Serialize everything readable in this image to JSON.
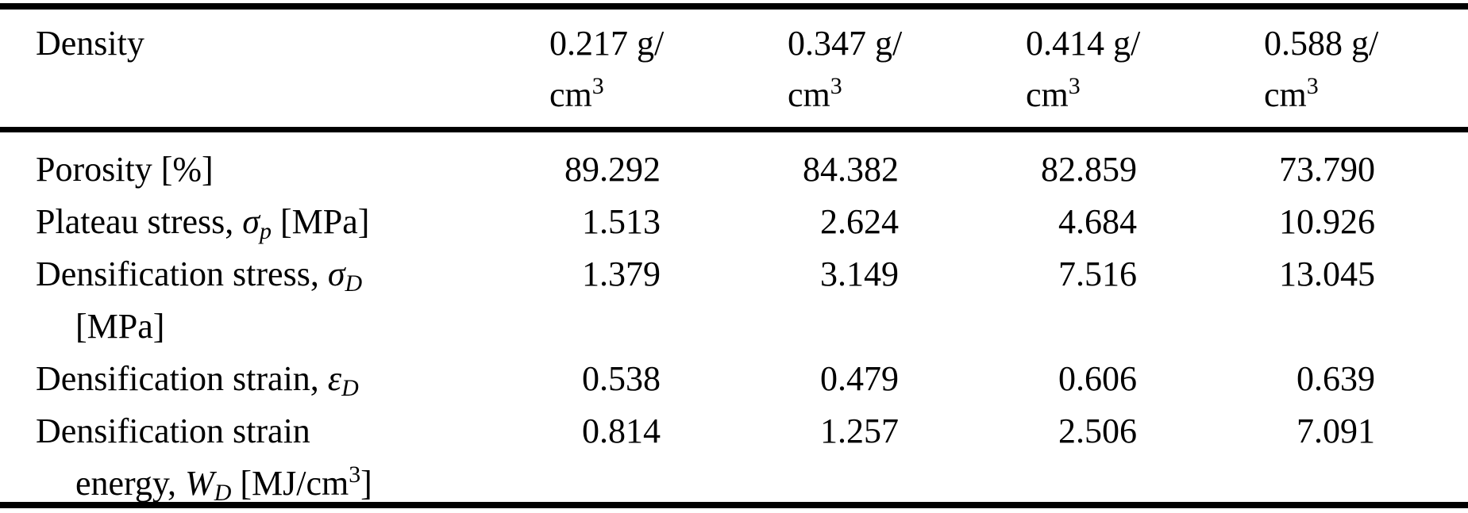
{
  "colors": {
    "background": "#ffffff",
    "text": "#000000",
    "rule": "#000000"
  },
  "table": {
    "header": {
      "label": "Density",
      "columns": [
        {
          "line1": "0.217 g/",
          "unit_base": "cm",
          "unit_sup": "3"
        },
        {
          "line1": "0.347 g/",
          "unit_base": "cm",
          "unit_sup": "3"
        },
        {
          "line1": "0.414 g/",
          "unit_base": "cm",
          "unit_sup": "3"
        },
        {
          "line1": "0.588 g/",
          "unit_base": "cm",
          "unit_sup": "3"
        }
      ]
    },
    "rows": [
      {
        "line1": {
          "pre": "Porosity [%]"
        },
        "values": [
          "89.292",
          "84.382",
          "82.859",
          "73.790"
        ]
      },
      {
        "line1": {
          "pre": "Plateau stress, ",
          "sym": "σ",
          "sym_sub": "p",
          "post": " [MPa]"
        },
        "values": [
          "1.513",
          "2.624",
          "4.684",
          "10.926"
        ]
      },
      {
        "line1": {
          "pre": "Densification stress, ",
          "sym": "σ",
          "sym_sub": "D"
        },
        "line2": {
          "pre": "[MPa]"
        },
        "values": [
          "1.379",
          "3.149",
          "7.516",
          "13.045"
        ]
      },
      {
        "line1": {
          "pre": "Densification strain, ",
          "sym": "ε",
          "sym_sub": "D"
        },
        "values": [
          "0.538",
          "0.479",
          "0.606",
          "0.639"
        ]
      },
      {
        "line1": {
          "pre": "Densification strain"
        },
        "line2": {
          "pre": "energy, ",
          "sym": "W",
          "sym_sub": "D",
          "post": " [MJ/cm",
          "sup": "3",
          "post2": "]"
        },
        "values": [
          "0.814",
          "1.257",
          "2.506",
          "7.091"
        ]
      }
    ]
  },
  "chart_data": {
    "type": "table",
    "title": "",
    "row_header": "Density",
    "categories": [
      "0.217 g/cm3",
      "0.347 g/cm3",
      "0.414 g/cm3",
      "0.588 g/cm3"
    ],
    "series": [
      {
        "name": "Porosity [%]",
        "values": [
          89.292,
          84.382,
          82.859,
          73.79
        ]
      },
      {
        "name": "Plateau stress, σp [MPa]",
        "values": [
          1.513,
          2.624,
          4.684,
          10.926
        ]
      },
      {
        "name": "Densification stress, σD [MPa]",
        "values": [
          1.379,
          3.149,
          7.516,
          13.045
        ]
      },
      {
        "name": "Densification strain, εD",
        "values": [
          0.538,
          0.479,
          0.606,
          0.639
        ]
      },
      {
        "name": "Densification strain energy, WD [MJ/cm3]",
        "values": [
          0.814,
          1.257,
          2.506,
          7.091
        ]
      }
    ]
  }
}
